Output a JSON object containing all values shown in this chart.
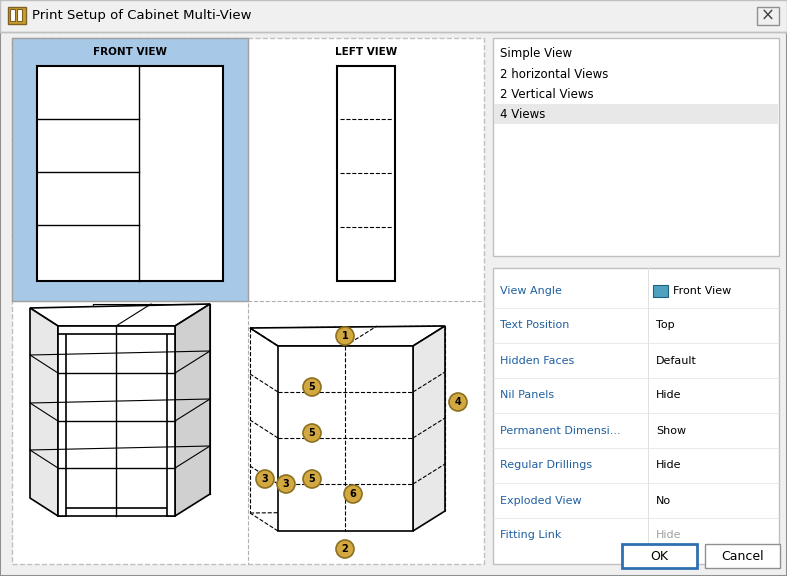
{
  "title": "Print Setup of Cabinet Multi-View",
  "bg_color": "#f0f0f0",
  "front_view_bg": "#a8c8e8",
  "white": "#ffffff",
  "list_items": [
    "Simple View",
    "2 horizontal Views",
    "2 Vertical Views",
    "4 Views"
  ],
  "selected_item": "4 Views",
  "selected_bg": "#e8e8e8",
  "properties": [
    [
      "View Angle",
      "Front View"
    ],
    [
      "Text Position",
      "Top"
    ],
    [
      "Hidden Faces",
      "Default"
    ],
    [
      "Nil Panels",
      "Hide"
    ],
    [
      "Permanent Dimensi...",
      "Show"
    ],
    [
      "Regular Drillings",
      "Hide"
    ],
    [
      "Exploded View",
      "No"
    ],
    [
      "Fitting Link",
      "Hide"
    ]
  ],
  "prop_label_color": "#2060a0",
  "prop_value_color": "#000000",
  "fitting_link_color": "#a0a0a0",
  "front_view_label": "FRONT VIEW",
  "left_view_label": "LEFT VIEW",
  "number_circle_color": "#d4a840",
  "number_circle_edge": "#8b7020",
  "number_text_color": "#000000",
  "icon_color": "#c8a030",
  "icon_edge": "#806020",
  "view_icon_color": "#50a0c0",
  "view_icon_edge": "#206080"
}
